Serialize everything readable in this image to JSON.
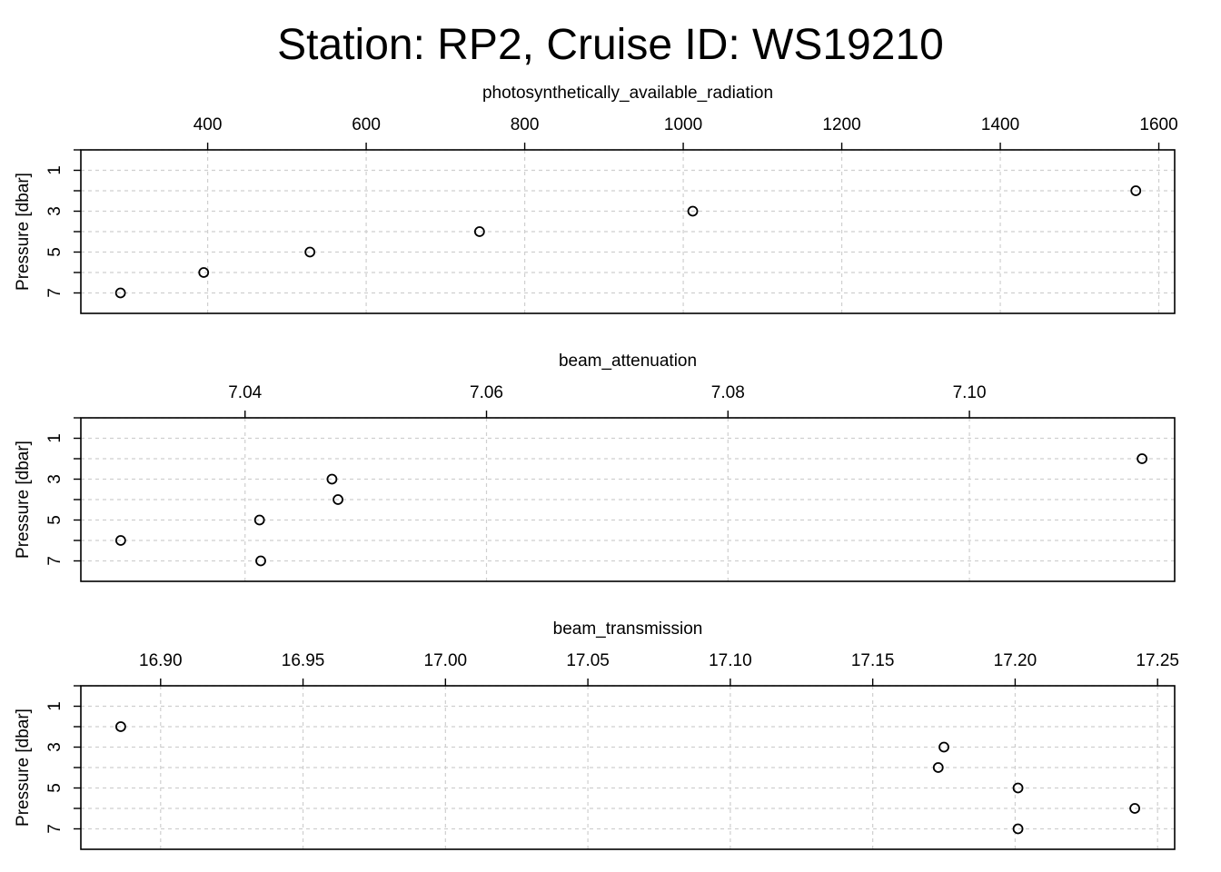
{
  "figure": {
    "title": "Station: RP2, Cruise ID: WS19210"
  },
  "chart_data": [
    {
      "type": "scatter",
      "title": "photosynthetically_available_radiation",
      "xlabel": "photosynthetically_available_radiation",
      "ylabel": "Pressure [dbar]",
      "xlim": [
        240,
        1620
      ],
      "ylim": [
        8,
        0
      ],
      "x_ticks": [
        400,
        600,
        800,
        1000,
        1200,
        1400,
        1600
      ],
      "x_tick_labels": [
        "400",
        "600",
        "800",
        "1000",
        "1200",
        "1400",
        "1600"
      ],
      "y_ticks": [
        1,
        3,
        5,
        7
      ],
      "y_tick_labels": [
        "1",
        "3",
        "5",
        "7"
      ],
      "y_minor_ticks": [
        0,
        1,
        2,
        3,
        4,
        5,
        6,
        7
      ],
      "grid": true,
      "marker": "open-circle",
      "points": [
        {
          "x": 1571,
          "y": 2
        },
        {
          "x": 1012,
          "y": 3
        },
        {
          "x": 743,
          "y": 4
        },
        {
          "x": 529,
          "y": 5
        },
        {
          "x": 395,
          "y": 6
        },
        {
          "x": 290,
          "y": 7
        }
      ]
    },
    {
      "type": "scatter",
      "title": "beam_attenuation",
      "xlabel": "beam_attenuation",
      "ylabel": "Pressure [dbar]",
      "xlim": [
        7.0264,
        7.117
      ],
      "ylim": [
        8,
        0
      ],
      "x_ticks": [
        7.04,
        7.06,
        7.08,
        7.1
      ],
      "x_tick_labels": [
        "7.04",
        "7.06",
        "7.08",
        "7.10"
      ],
      "y_ticks": [
        1,
        3,
        5,
        7
      ],
      "y_tick_labels": [
        "1",
        "3",
        "5",
        "7"
      ],
      "y_minor_ticks": [
        0,
        1,
        2,
        3,
        4,
        5,
        6,
        7
      ],
      "grid": true,
      "marker": "open-circle",
      "points": [
        {
          "x": 7.1143,
          "y": 2
        },
        {
          "x": 7.0472,
          "y": 3
        },
        {
          "x": 7.0477,
          "y": 4
        },
        {
          "x": 7.0412,
          "y": 5
        },
        {
          "x": 7.0297,
          "y": 6
        },
        {
          "x": 7.0413,
          "y": 7
        }
      ]
    },
    {
      "type": "scatter",
      "title": "beam_transmission",
      "xlabel": "beam_transmission",
      "ylabel": "Pressure [dbar]",
      "xlim": [
        16.872,
        17.256
      ],
      "ylim": [
        8,
        0
      ],
      "x_ticks": [
        16.9,
        16.95,
        17.0,
        17.05,
        17.1,
        17.15,
        17.2,
        17.25
      ],
      "x_tick_labels": [
        "16.90",
        "16.95",
        "17.00",
        "17.05",
        "17.10",
        "17.15",
        "17.20",
        "17.25"
      ],
      "y_ticks": [
        1,
        3,
        5,
        7
      ],
      "y_tick_labels": [
        "1",
        "3",
        "5",
        "7"
      ],
      "y_minor_ticks": [
        0,
        1,
        2,
        3,
        4,
        5,
        6,
        7
      ],
      "grid": true,
      "marker": "open-circle",
      "points": [
        {
          "x": 16.886,
          "y": 2
        },
        {
          "x": 17.175,
          "y": 3
        },
        {
          "x": 17.173,
          "y": 4
        },
        {
          "x": 17.201,
          "y": 5
        },
        {
          "x": 17.242,
          "y": 6
        },
        {
          "x": 17.201,
          "y": 7
        }
      ]
    }
  ]
}
